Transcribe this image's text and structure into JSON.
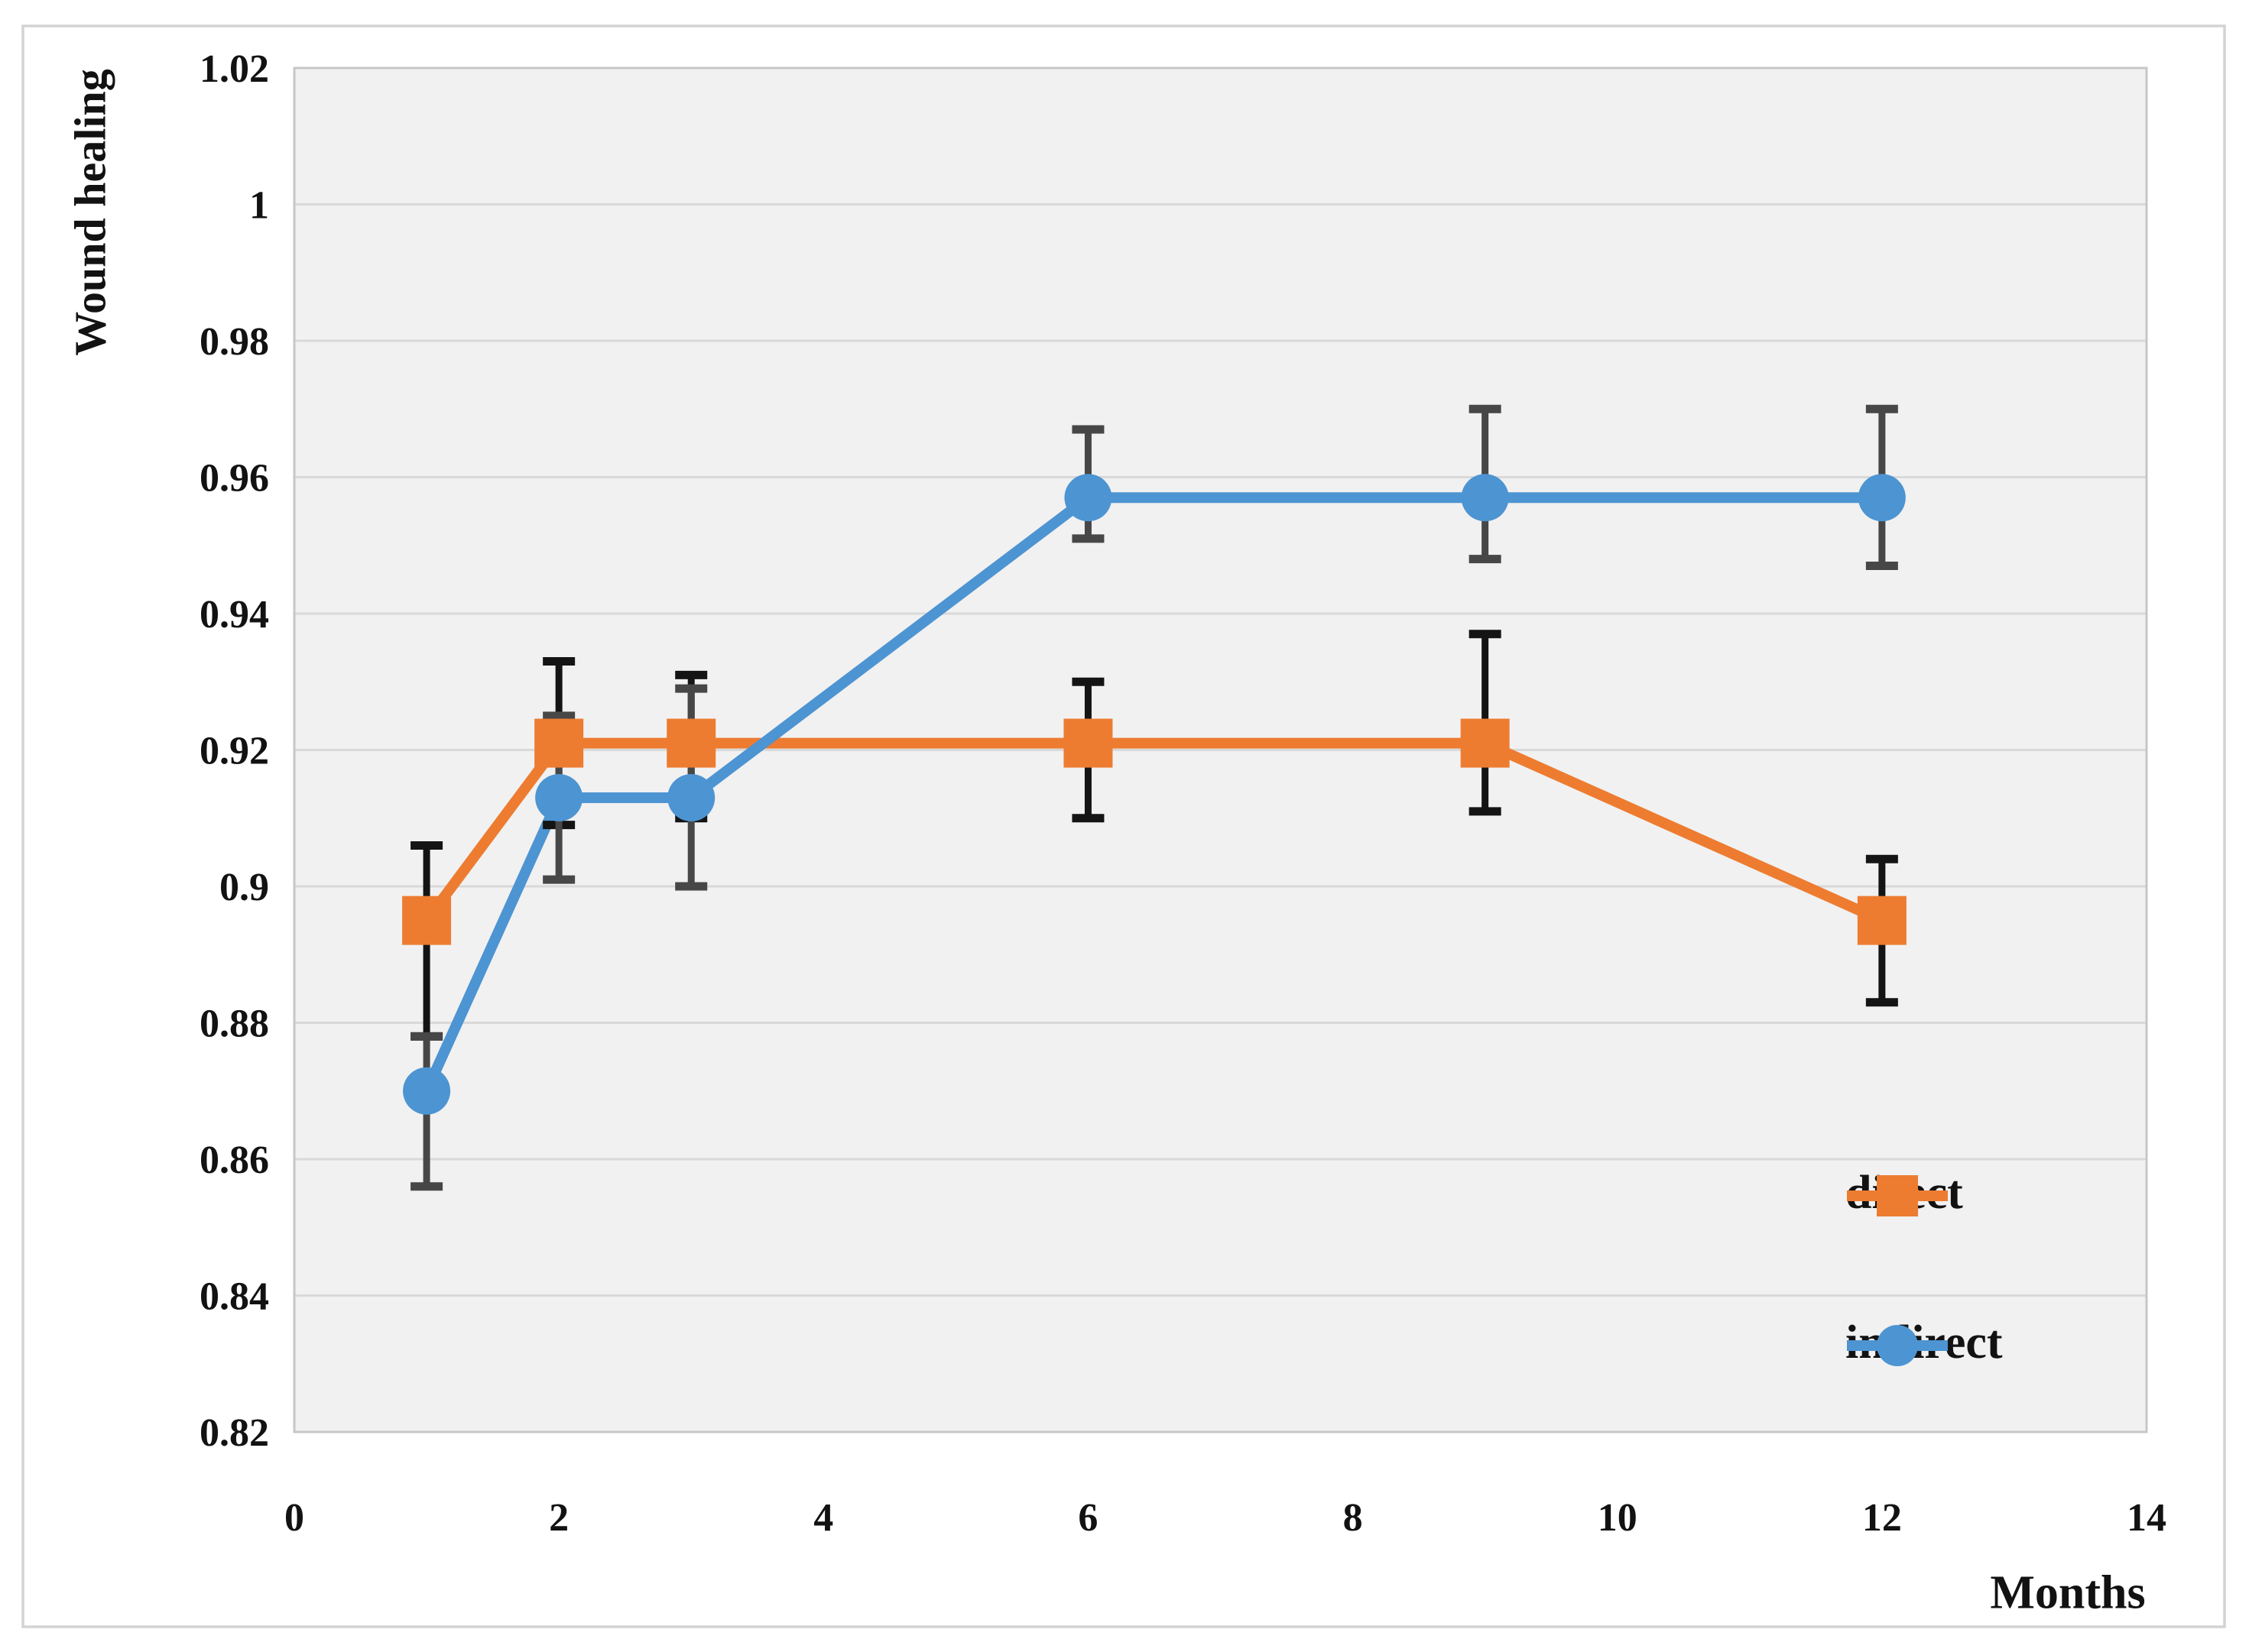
{
  "figure": {
    "background": "#ffffff",
    "border_color": "#d3d3d3"
  },
  "chart_data": {
    "type": "line",
    "title": "",
    "xlabel": "Months",
    "ylabel": "Wound healing",
    "xlim": [
      0,
      14
    ],
    "ylim": [
      0.82,
      1.02
    ],
    "x_ticks": [
      "0",
      "2",
      "4",
      "6",
      "8",
      "10",
      "12",
      "14"
    ],
    "y_ticks": [
      "0.82",
      "0.84",
      "0.86",
      "0.88",
      "0.9",
      "0.92",
      "0.94",
      "0.96",
      "0.98",
      "1",
      "1.02"
    ],
    "grid": "horizontal",
    "legend_position": "inside bottom-right",
    "plot_bg_color": "#f1f1f1",
    "grid_color": "#d9d9d9",
    "plot_border_color": "#c7c7c7",
    "text_color": "#121212",
    "error_bars": true,
    "series": [
      {
        "name": "direct",
        "marker": "square",
        "color": "#ED7C31",
        "error_color": "#141414",
        "x": [
          1,
          2,
          3,
          6,
          9,
          12
        ],
        "y": [
          0.895,
          0.921,
          0.921,
          0.921,
          0.921,
          0.895
        ],
        "err_upper": [
          0.906,
          0.933,
          0.931,
          0.93,
          0.937,
          0.904
        ],
        "err_lower": [
          0.878,
          0.909,
          0.91,
          0.91,
          0.911,
          0.883
        ]
      },
      {
        "name": "indirect",
        "marker": "circle",
        "color": "#4D94D2",
        "error_color": "#474747",
        "x": [
          1,
          2,
          3,
          6,
          9,
          12
        ],
        "y": [
          0.87,
          0.913,
          0.913,
          0.957,
          0.957,
          0.957
        ],
        "err_upper": [
          0.878,
          0.925,
          0.929,
          0.967,
          0.97,
          0.97
        ],
        "err_lower": [
          0.856,
          0.901,
          0.9,
          0.951,
          0.948,
          0.947
        ]
      }
    ]
  }
}
